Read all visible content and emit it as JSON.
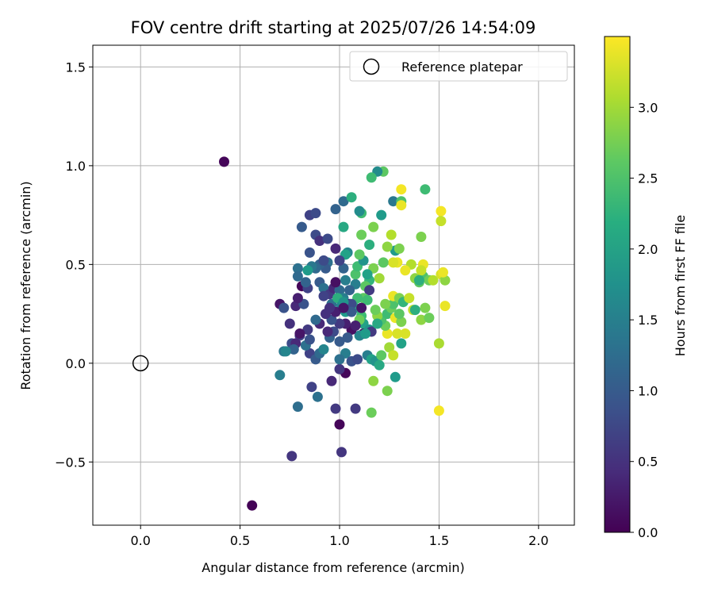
{
  "chart_data": {
    "type": "scatter",
    "title": "FOV centre drift starting at 2025/07/26 14:54:09",
    "xlabel": "Angular distance from reference (arcmin)",
    "ylabel": "Rotation from reference (arcmin)",
    "xlim": [
      -0.24,
      2.18
    ],
    "ylim": [
      -0.82,
      1.61
    ],
    "xticks": [
      0.0,
      0.5,
      1.0,
      1.5,
      2.0
    ],
    "xtick_labels": [
      "0.0",
      "0.5",
      "1.0",
      "1.5",
      "2.0"
    ],
    "yticks": [
      -0.5,
      0.0,
      0.5,
      1.0,
      1.5
    ],
    "ytick_labels": [
      "−0.5",
      "0.0",
      "0.5",
      "1.0",
      "1.5"
    ],
    "grid": true,
    "colormap": "viridis",
    "colorbar": {
      "label": "Hours from first FF file",
      "range": [
        0.0,
        3.5
      ],
      "ticks": [
        0.0,
        0.5,
        1.0,
        1.5,
        2.0,
        2.5,
        3.0
      ],
      "tick_labels": [
        "0.0",
        "0.5",
        "1.0",
        "1.5",
        "2.0",
        "2.5",
        "3.0"
      ]
    },
    "legend": {
      "position": "top-right",
      "entries": [
        "Reference platepar"
      ]
    },
    "reference_point": {
      "x": 0.0,
      "y": 0.0,
      "label": "Reference platepar"
    },
    "points": [
      [
        0.42,
        1.02,
        0.05
      ],
      [
        0.56,
        -0.72,
        0.02
      ],
      [
        1.0,
        -0.31,
        0.05
      ],
      [
        1.01,
        -0.45,
        0.55
      ],
      [
        0.76,
        -0.47,
        0.55
      ],
      [
        0.79,
        -0.22,
        1.25
      ],
      [
        0.7,
        -0.06,
        1.5
      ],
      [
        0.86,
        -0.12,
        0.7
      ],
      [
        0.89,
        -0.17,
        1.3
      ],
      [
        0.96,
        -0.09,
        0.4
      ],
      [
        0.98,
        -0.23,
        0.6
      ],
      [
        1.08,
        -0.23,
        0.6
      ],
      [
        1.16,
        -0.25,
        2.7
      ],
      [
        1.17,
        -0.09,
        2.9
      ],
      [
        1.24,
        -0.14,
        2.8
      ],
      [
        1.28,
        -0.07,
        1.9
      ],
      [
        1.5,
        -0.24,
        3.45
      ],
      [
        1.5,
        0.1,
        3.05
      ],
      [
        1.03,
        -0.05,
        0.05
      ],
      [
        1.0,
        -0.03,
        0.55
      ],
      [
        0.85,
        0.05,
        0.7
      ],
      [
        0.88,
        0.02,
        1.0
      ],
      [
        0.9,
        0.05,
        1.2
      ],
      [
        0.72,
        0.06,
        1.4
      ],
      [
        0.76,
        0.1,
        0.8
      ],
      [
        0.8,
        0.14,
        0.7
      ],
      [
        0.83,
        0.09,
        1.3
      ],
      [
        0.75,
        0.2,
        0.5
      ],
      [
        0.78,
        0.29,
        0.4
      ],
      [
        0.7,
        0.3,
        0.2
      ],
      [
        0.72,
        0.28,
        0.9
      ],
      [
        0.82,
        0.3,
        0.9
      ],
      [
        0.79,
        0.33,
        0.3
      ],
      [
        0.81,
        0.39,
        0.05
      ],
      [
        0.84,
        0.38,
        0.7
      ],
      [
        0.83,
        0.41,
        1.1
      ],
      [
        0.9,
        0.41,
        1.0
      ],
      [
        0.92,
        0.38,
        1.3
      ],
      [
        0.95,
        0.35,
        0.6
      ],
      [
        0.97,
        0.38,
        0.4
      ],
      [
        1.0,
        0.37,
        1.2
      ],
      [
        1.02,
        0.33,
        1.5
      ],
      [
        1.05,
        0.3,
        0.3
      ],
      [
        1.08,
        0.28,
        2.1
      ],
      [
        1.11,
        0.24,
        2.4
      ],
      [
        1.12,
        0.2,
        2.0
      ],
      [
        1.15,
        0.17,
        1.8
      ],
      [
        1.12,
        0.15,
        0.1
      ],
      [
        1.1,
        0.14,
        1.6
      ],
      [
        1.06,
        0.17,
        0.15
      ],
      [
        1.03,
        0.2,
        0.3
      ],
      [
        1.0,
        0.2,
        0.6
      ],
      [
        0.96,
        0.22,
        0.9
      ],
      [
        0.93,
        0.25,
        0.5
      ],
      [
        0.9,
        0.2,
        0.4
      ],
      [
        0.88,
        0.22,
        1.2
      ],
      [
        0.85,
        0.12,
        0.9
      ],
      [
        0.84,
        0.17,
        0.6
      ],
      [
        0.8,
        0.15,
        0.2
      ],
      [
        0.78,
        0.1,
        0.4
      ],
      [
        0.77,
        0.07,
        1.1
      ],
      [
        0.73,
        0.06,
        1.6
      ],
      [
        0.95,
        0.13,
        1.1
      ],
      [
        0.97,
        0.16,
        0.8
      ],
      [
        1.0,
        0.11,
        1.0
      ],
      [
        1.03,
        0.05,
        1.5
      ],
      [
        1.0,
        0.02,
        1.3
      ],
      [
        1.06,
        0.01,
        0.9
      ],
      [
        1.09,
        0.02,
        0.8
      ],
      [
        1.14,
        0.04,
        1.5
      ],
      [
        1.16,
        0.02,
        2.0
      ],
      [
        1.18,
        0.01,
        1.8
      ],
      [
        1.2,
        -0.01,
        2.1
      ],
      [
        1.21,
        0.04,
        2.6
      ],
      [
        1.25,
        0.08,
        3.0
      ],
      [
        1.27,
        0.04,
        3.2
      ],
      [
        1.31,
        0.1,
        2.0
      ],
      [
        1.33,
        0.15,
        3.3
      ],
      [
        1.29,
        0.15,
        3.3
      ],
      [
        1.24,
        0.15,
        3.4
      ],
      [
        1.23,
        0.19,
        2.7
      ],
      [
        1.21,
        0.22,
        2.5
      ],
      [
        1.19,
        0.24,
        2.9
      ],
      [
        1.24,
        0.25,
        2.4
      ],
      [
        1.26,
        0.28,
        2.7
      ],
      [
        1.28,
        0.23,
        3.4
      ],
      [
        1.31,
        0.21,
        2.8
      ],
      [
        1.3,
        0.25,
        2.6
      ],
      [
        1.27,
        0.3,
        2.5
      ],
      [
        1.27,
        0.34,
        3.4
      ],
      [
        1.3,
        0.33,
        2.8
      ],
      [
        1.32,
        0.31,
        2.3
      ],
      [
        1.35,
        0.33,
        3.2
      ],
      [
        1.37,
        0.27,
        3.2
      ],
      [
        1.38,
        0.27,
        2.2
      ],
      [
        1.41,
        0.22,
        2.9
      ],
      [
        1.45,
        0.23,
        2.7
      ],
      [
        1.43,
        0.28,
        2.8
      ],
      [
        1.4,
        0.41,
        2.6
      ],
      [
        1.38,
        0.43,
        2.9
      ],
      [
        1.42,
        0.44,
        2.5
      ],
      [
        1.45,
        0.42,
        2.7
      ],
      [
        1.47,
        0.42,
        3.1
      ],
      [
        1.51,
        0.45,
        3.3
      ],
      [
        1.53,
        0.42,
        2.9
      ],
      [
        1.52,
        0.46,
        3.4
      ],
      [
        1.53,
        0.29,
        3.4
      ],
      [
        1.42,
        0.5,
        3.4
      ],
      [
        1.41,
        0.47,
        3.2
      ],
      [
        1.4,
        0.42,
        2.2
      ],
      [
        1.36,
        0.5,
        3.1
      ],
      [
        1.33,
        0.47,
        3.4
      ],
      [
        1.29,
        0.51,
        3.4
      ],
      [
        1.27,
        0.51,
        3.3
      ],
      [
        1.28,
        0.57,
        1.9
      ],
      [
        1.3,
        0.58,
        2.8
      ],
      [
        1.24,
        0.59,
        2.9
      ],
      [
        1.22,
        0.51,
        2.6
      ],
      [
        1.2,
        0.43,
        3.0
      ],
      [
        1.17,
        0.48,
        2.8
      ],
      [
        1.15,
        0.42,
        2.3
      ],
      [
        1.13,
        0.39,
        2.6
      ],
      [
        1.15,
        0.37,
        0.6
      ],
      [
        1.12,
        0.33,
        2.6
      ],
      [
        1.09,
        0.33,
        2.4
      ],
      [
        1.06,
        0.3,
        0.8
      ],
      [
        1.08,
        0.4,
        1.5
      ],
      [
        1.08,
        0.45,
        2.5
      ],
      [
        1.09,
        0.49,
        2.4
      ],
      [
        1.12,
        0.52,
        1.8
      ],
      [
        1.15,
        0.6,
        2.2
      ],
      [
        1.1,
        0.55,
        2.6
      ],
      [
        1.04,
        0.56,
        1.6
      ],
      [
        1.03,
        0.55,
        2.0
      ],
      [
        1.02,
        0.48,
        1.1
      ],
      [
        1.0,
        0.52,
        0.7
      ],
      [
        0.98,
        0.58,
        0.4
      ],
      [
        0.94,
        0.51,
        1.3
      ],
      [
        0.93,
        0.48,
        1.0
      ],
      [
        0.9,
        0.5,
        1.1
      ],
      [
        0.88,
        0.48,
        1.2
      ],
      [
        0.92,
        0.52,
        0.8
      ],
      [
        0.86,
        0.49,
        1.4
      ],
      [
        0.84,
        0.47,
        1.9
      ],
      [
        0.79,
        0.48,
        1.3
      ],
      [
        0.79,
        0.44,
        1.2
      ],
      [
        0.85,
        0.56,
        0.9
      ],
      [
        0.88,
        0.65,
        0.8
      ],
      [
        0.9,
        0.62,
        0.5
      ],
      [
        0.94,
        0.63,
        0.8
      ],
      [
        0.85,
        0.75,
        0.7
      ],
      [
        0.88,
        0.76,
        0.8
      ],
      [
        0.81,
        0.69,
        1.0
      ],
      [
        0.98,
        0.78,
        1.1
      ],
      [
        1.02,
        0.82,
        1.2
      ],
      [
        1.06,
        0.84,
        2.2
      ],
      [
        1.02,
        0.69,
        2.1
      ],
      [
        1.11,
        0.76,
        2.4
      ],
      [
        1.1,
        0.77,
        1.7
      ],
      [
        1.11,
        0.65,
        2.7
      ],
      [
        1.17,
        0.69,
        2.8
      ],
      [
        1.21,
        0.75,
        1.9
      ],
      [
        1.26,
        0.65,
        3.1
      ],
      [
        1.27,
        0.82,
        1.4
      ],
      [
        1.31,
        0.82,
        2.5
      ],
      [
        1.31,
        0.8,
        3.4
      ],
      [
        1.31,
        0.88,
        3.45
      ],
      [
        1.43,
        0.88,
        2.4
      ],
      [
        1.41,
        0.64,
        2.8
      ],
      [
        1.51,
        0.77,
        3.45
      ],
      [
        1.51,
        0.72,
        3.2
      ],
      [
        1.22,
        0.97,
        2.6
      ],
      [
        1.19,
        0.97,
        1.7
      ],
      [
        1.16,
        0.94,
        2.4
      ],
      [
        1.16,
        0.16,
        0.6
      ],
      [
        1.13,
        0.15,
        1.9
      ],
      [
        1.1,
        0.22,
        2.7
      ],
      [
        1.14,
        0.32,
        2.4
      ],
      [
        1.18,
        0.27,
        2.7
      ],
      [
        1.23,
        0.3,
        2.8
      ],
      [
        0.92,
        0.07,
        1.6
      ],
      [
        0.96,
        0.3,
        1.3
      ],
      [
        0.99,
        0.33,
        2.2
      ],
      [
        1.01,
        0.29,
        1.6
      ],
      [
        1.03,
        0.26,
        1.9
      ],
      [
        0.98,
        0.26,
        0.3
      ],
      [
        0.95,
        0.28,
        0.5
      ],
      [
        0.98,
        0.41,
        0.15
      ],
      [
        1.05,
        0.37,
        1.1
      ],
      [
        1.03,
        0.42,
        1.5
      ],
      [
        1.02,
        0.31,
        1.8
      ],
      [
        1.06,
        0.26,
        1.0
      ],
      [
        1.08,
        0.19,
        0.3
      ],
      [
        1.11,
        0.28,
        0.2
      ],
      [
        1.14,
        0.45,
        2.0
      ],
      [
        1.19,
        0.2,
        2.1
      ],
      [
        0.92,
        0.34,
        0.7
      ],
      [
        0.94,
        0.16,
        0.4
      ],
      [
        1.04,
        0.13,
        1.0
      ],
      [
        1.02,
        0.28,
        0.2
      ]
    ]
  }
}
